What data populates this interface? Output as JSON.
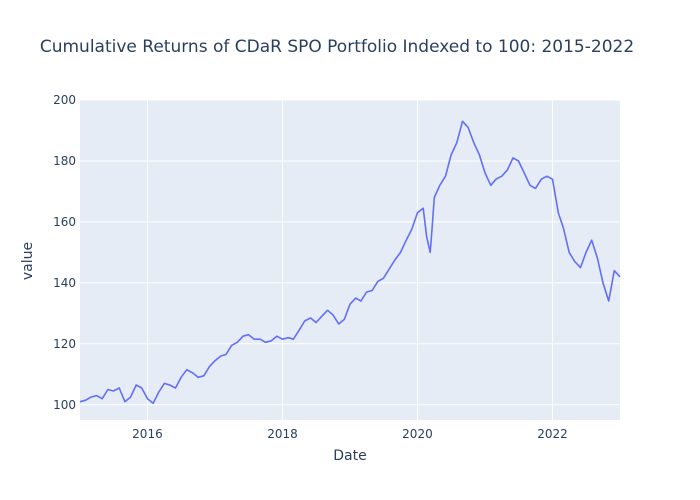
{
  "chart_data": {
    "type": "line",
    "title": "Cumulative Returns of CDaR SPO Portfolio Indexed to 100: 2015-2022",
    "xlabel": "Date",
    "ylabel": "value",
    "xlim": [
      "2015-01-01",
      "2023-01-01"
    ],
    "ylim": [
      95,
      200
    ],
    "x_ticks": [
      "2016",
      "2018",
      "2020",
      "2022"
    ],
    "y_ticks": [
      100,
      120,
      140,
      160,
      180,
      200
    ],
    "grid": true,
    "legend": "none",
    "colors": {
      "line": "#636efa",
      "plot_bg": "#e5ecf6",
      "grid": "#ffffff",
      "text": "#2a3f5f"
    },
    "series": [
      {
        "x": [
          "2015-01-01",
          "2015-02-01",
          "2015-03-01",
          "2015-04-01",
          "2015-05-01",
          "2015-06-01",
          "2015-07-01",
          "2015-08-01",
          "2015-09-01",
          "2015-10-01",
          "2015-11-01",
          "2015-12-01",
          "2016-01-01",
          "2016-02-01",
          "2016-03-01",
          "2016-04-01",
          "2016-05-01",
          "2016-06-01",
          "2016-07-01",
          "2016-08-01",
          "2016-09-01",
          "2016-10-01",
          "2016-11-01",
          "2016-12-01",
          "2017-01-01",
          "2017-02-01",
          "2017-03-01",
          "2017-04-01",
          "2017-05-01",
          "2017-06-01",
          "2017-07-01",
          "2017-08-01",
          "2017-09-01",
          "2017-10-01",
          "2017-11-01",
          "2017-12-01",
          "2018-01-01",
          "2018-02-01",
          "2018-03-01",
          "2018-04-01",
          "2018-05-01",
          "2018-06-01",
          "2018-07-01",
          "2018-08-01",
          "2018-09-01",
          "2018-10-01",
          "2018-11-01",
          "2018-12-01",
          "2019-01-01",
          "2019-02-01",
          "2019-03-01",
          "2019-04-01",
          "2019-05-01",
          "2019-06-01",
          "2019-07-01",
          "2019-08-01",
          "2019-09-01",
          "2019-10-01",
          "2019-11-01",
          "2019-12-01",
          "2020-01-01",
          "2020-02-01",
          "2020-02-20",
          "2020-03-10",
          "2020-03-20",
          "2020-04-01",
          "2020-05-01",
          "2020-06-01",
          "2020-07-01",
          "2020-08-01",
          "2020-09-01",
          "2020-10-01",
          "2020-11-01",
          "2020-12-01",
          "2021-01-01",
          "2021-02-01",
          "2021-03-01",
          "2021-04-01",
          "2021-05-01",
          "2021-06-01",
          "2021-07-01",
          "2021-08-01",
          "2021-09-01",
          "2021-10-01",
          "2021-11-01",
          "2021-12-01",
          "2022-01-01",
          "2022-02-01",
          "2022-03-01",
          "2022-04-01",
          "2022-05-01",
          "2022-06-01",
          "2022-07-01",
          "2022-08-01",
          "2022-09-01",
          "2022-10-01",
          "2022-11-01",
          "2022-12-01",
          "2023-01-01"
        ],
        "values": [
          101,
          101.5,
          102.5,
          103,
          102,
          105,
          104.5,
          105.5,
          101,
          102.5,
          106.5,
          105.5,
          102,
          100.5,
          104,
          107,
          106.5,
          105.5,
          109,
          111.5,
          110.5,
          109,
          109.5,
          112.5,
          114.5,
          116,
          116.5,
          119.5,
          120.5,
          122.5,
          123,
          121.5,
          121.5,
          120.5,
          121,
          122.5,
          121.5,
          122,
          121.5,
          124.5,
          127.5,
          128.5,
          127,
          129,
          131,
          129.5,
          126.5,
          128,
          133,
          135,
          134,
          137,
          137.5,
          140.5,
          141.5,
          144.5,
          147.5,
          150,
          154,
          157.5,
          163,
          164.5,
          155,
          150,
          158,
          168,
          172,
          175,
          182,
          186,
          193,
          191,
          186,
          182,
          176,
          172,
          174,
          175,
          177,
          181,
          180,
          176,
          172,
          171,
          174,
          175,
          174,
          163,
          158,
          150,
          147,
          145,
          150,
          154,
          148,
          140,
          134,
          144,
          142
        ]
      }
    ]
  }
}
